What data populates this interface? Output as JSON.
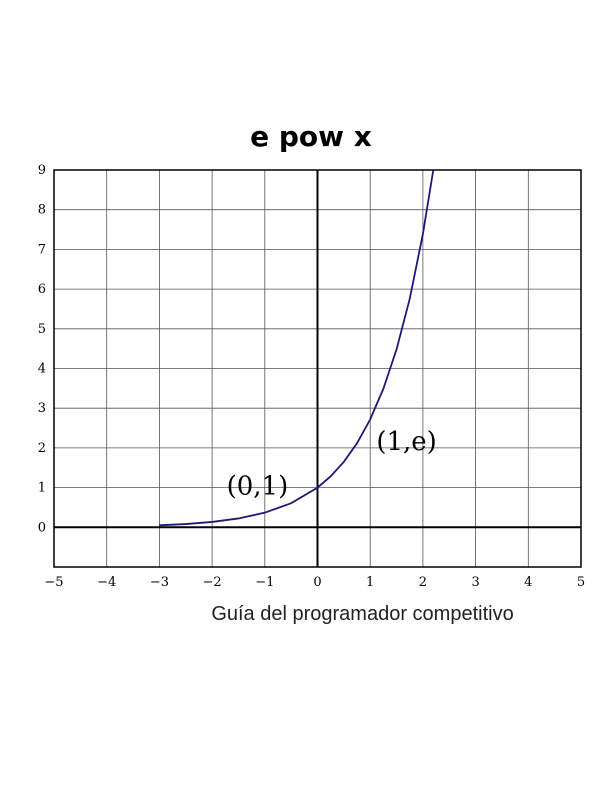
{
  "chart_data": {
    "type": "line",
    "title": "e pow x",
    "xlabel": "Guía del programador competitivo",
    "ylabel": "",
    "xlim": [
      -5,
      5
    ],
    "ylim": [
      -1,
      9
    ],
    "x_ticks": [
      -5,
      -4,
      -3,
      -2,
      -1,
      0,
      1,
      2,
      3,
      4,
      5
    ],
    "x_tick_labels": [
      "−5",
      "−4",
      "−3",
      "−2",
      "−1",
      "0",
      "1",
      "2",
      "3",
      "4",
      "5"
    ],
    "y_ticks": [
      0,
      1,
      2,
      3,
      4,
      5,
      6,
      7,
      8,
      9
    ],
    "y_tick_labels": [
      "0",
      "1",
      "2",
      "3",
      "4",
      "5",
      "6",
      "7",
      "8",
      "9"
    ],
    "grid": true,
    "series": [
      {
        "color": "#1a1a7a",
        "x": [
          -3.0,
          -2.5,
          -2.0,
          -1.5,
          -1.0,
          -0.5,
          0.0,
          0.25,
          0.5,
          0.75,
          1.0,
          1.25,
          1.5,
          1.75,
          2.0,
          2.197
        ],
        "y": [
          0.05,
          0.082,
          0.135,
          0.223,
          0.368,
          0.607,
          1.0,
          1.284,
          1.649,
          2.117,
          2.718,
          3.49,
          4.482,
          5.755,
          7.389,
          9.0
        ]
      }
    ],
    "annotations": [
      {
        "text": "(0,1)",
        "x": -1.14,
        "y": 1.0
      },
      {
        "text": "(1,e)",
        "x": 1.69,
        "y": 2.12
      }
    ]
  }
}
